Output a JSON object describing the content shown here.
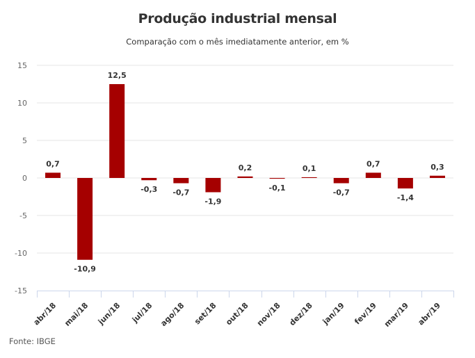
{
  "chart_data": {
    "type": "bar",
    "title": "Produção industrial mensal",
    "subtitle": "Comparação com o mês imediatamente anterior, em %",
    "source": "Fonte: IBGE",
    "categories": [
      "abr/18",
      "mai/18",
      "jun/18",
      "jul/18",
      "ago/18",
      "set/18",
      "out/18",
      "nov/18",
      "dez/18",
      "jan/19",
      "fev/19",
      "mar/19",
      "abr/19"
    ],
    "values": [
      0.7,
      -10.9,
      12.5,
      -0.3,
      -0.7,
      -1.9,
      0.2,
      -0.1,
      0.1,
      -0.7,
      0.7,
      -1.4,
      0.3
    ],
    "data_labels": [
      "0,7",
      "-10,9",
      "12,5",
      "-0,3",
      "-0,7",
      "-1,9",
      "0,2",
      "-0,1",
      "0,1",
      "-0,7",
      "0,7",
      "-1,4",
      "0,3"
    ],
    "xlabel": "",
    "ylabel": "",
    "ylim": [
      -15,
      15
    ],
    "yticks": [
      15,
      10,
      5,
      0,
      -5,
      -10,
      -15
    ],
    "ytick_labels": [
      "15",
      "10",
      "5",
      "0",
      "-5",
      "-10",
      "-15"
    ],
    "grid": true,
    "legend": "none",
    "bar_color": "#a50000"
  }
}
